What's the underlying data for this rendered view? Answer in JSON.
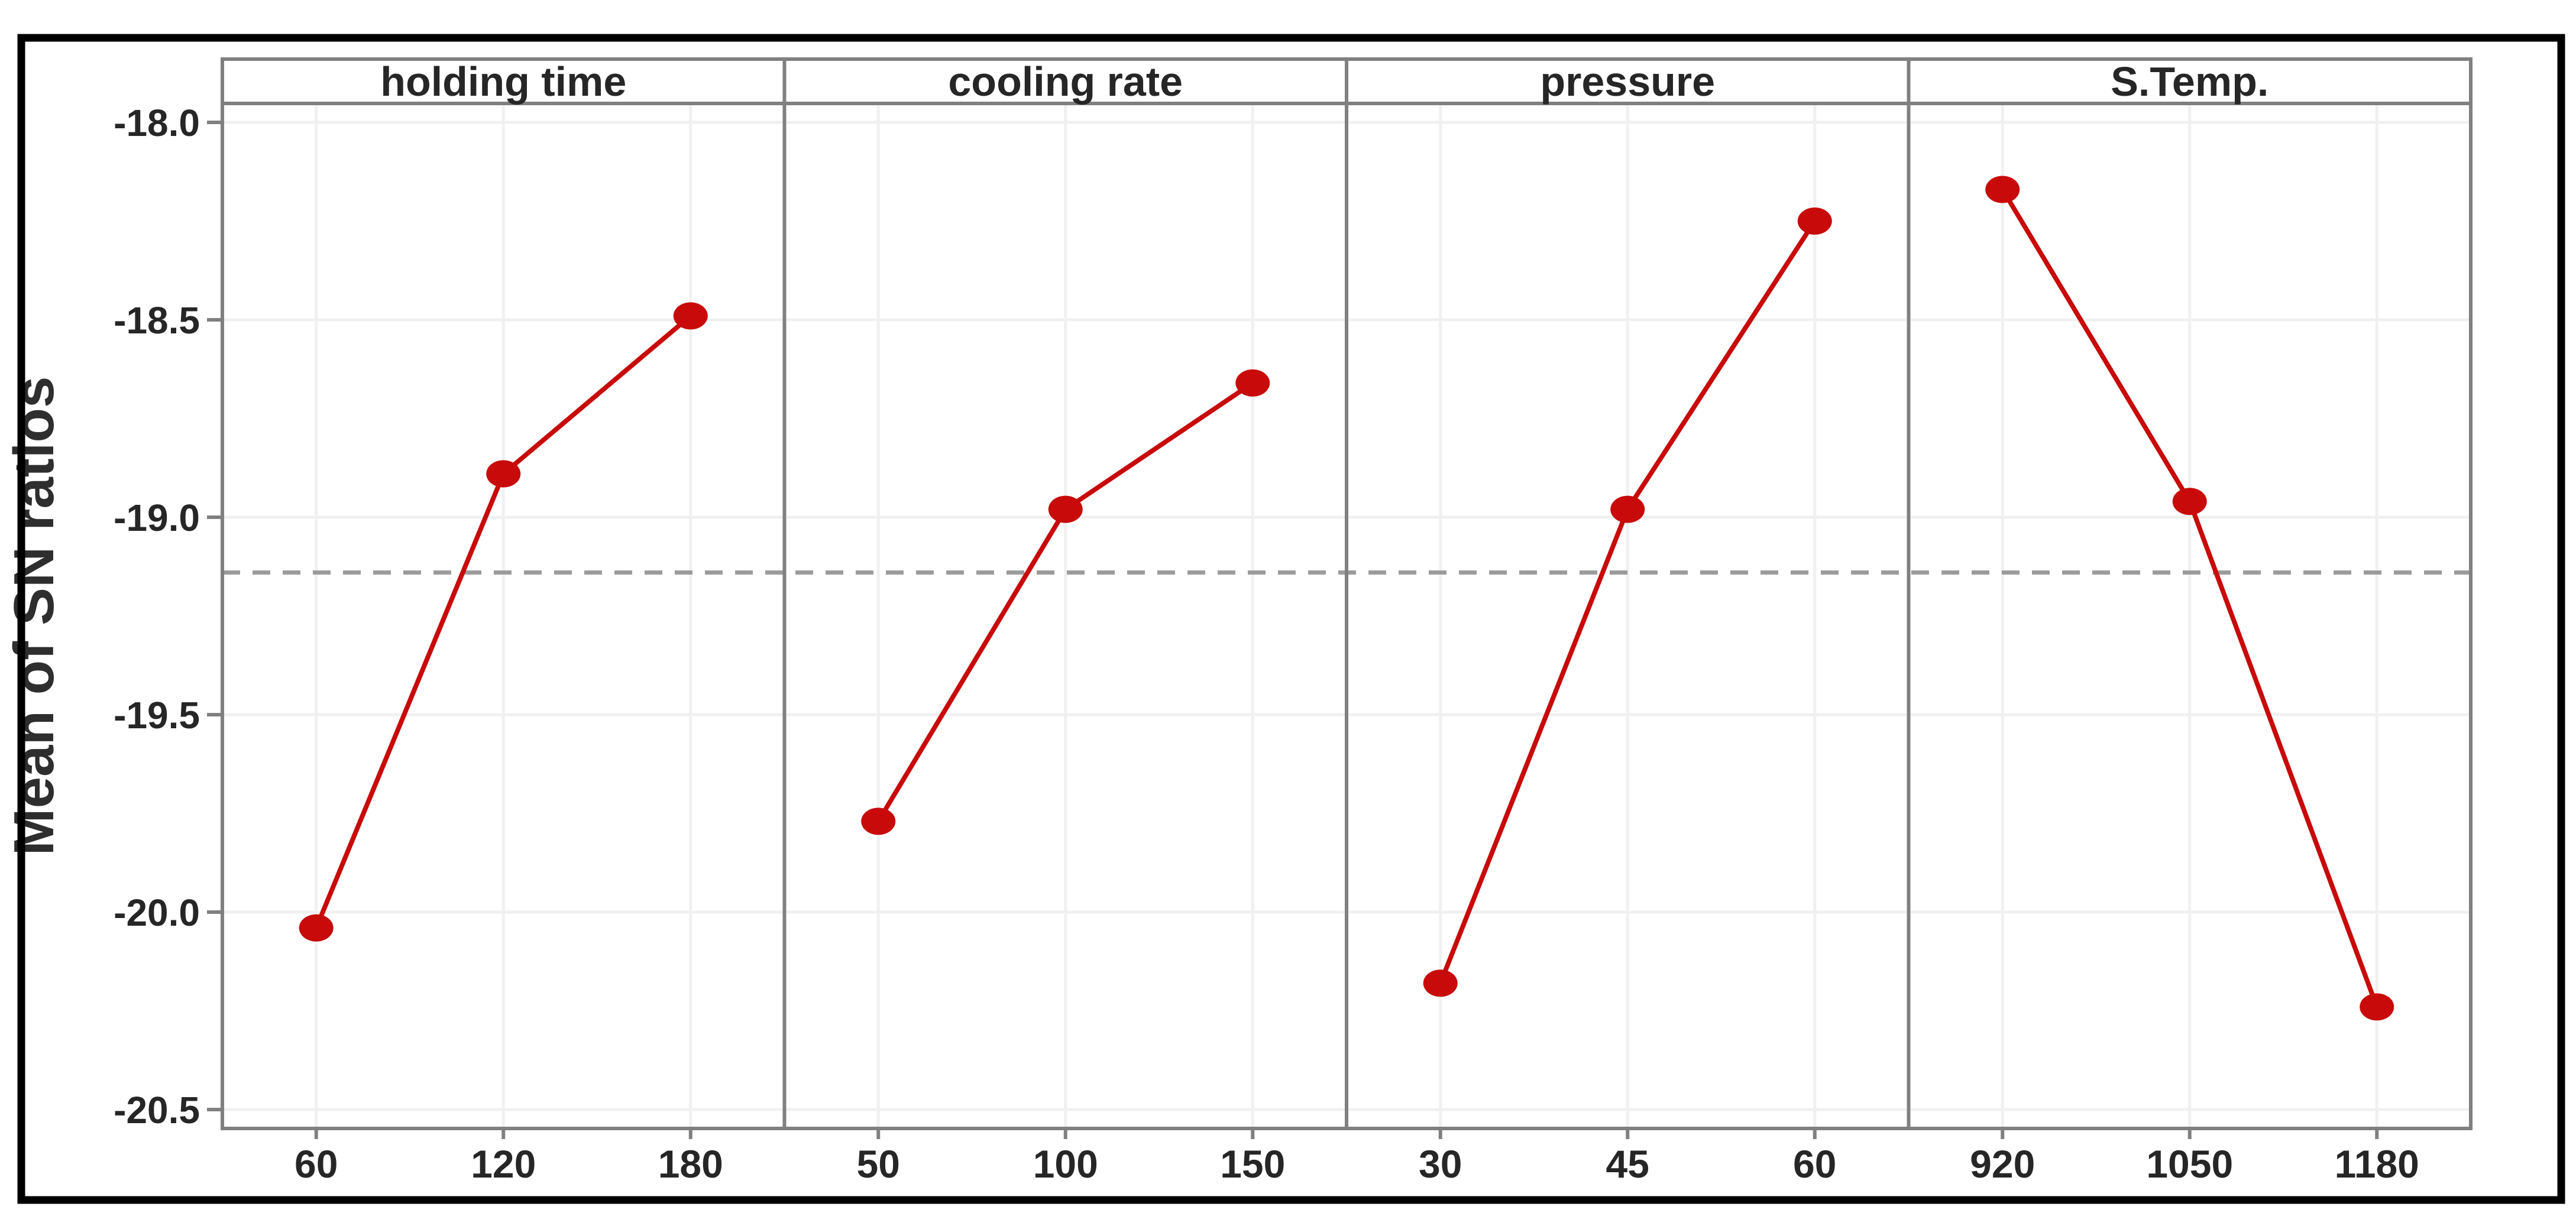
{
  "chart_data": {
    "type": "line",
    "title": "",
    "ylabel": "Mean of SN ratios",
    "ylim": [
      -20.5,
      -18.0
    ],
    "yticks": [
      -18.0,
      -18.5,
      -19.0,
      -19.5,
      -20.0,
      -20.5
    ],
    "ytick_labels": [
      "-18.0",
      "-18.5",
      "-19.0",
      "-19.5",
      "-20.0",
      "-20.5"
    ],
    "reference_line": -19.14,
    "reference_line_style": "dashed",
    "grid": true,
    "legend_position": "none",
    "panels": [
      {
        "title": "holding time",
        "categories": [
          "60",
          "120",
          "180"
        ],
        "values": [
          -20.04,
          -18.89,
          -18.49
        ]
      },
      {
        "title": "cooling rate",
        "categories": [
          "50",
          "100",
          "150"
        ],
        "values": [
          -19.77,
          -18.98,
          -18.66
        ]
      },
      {
        "title": "pressure",
        "categories": [
          "30",
          "45",
          "60"
        ],
        "values": [
          -20.18,
          -18.98,
          -18.25
        ]
      },
      {
        "title": "S.Temp.",
        "categories": [
          "920",
          "1050",
          "1180"
        ],
        "values": [
          -18.17,
          -18.96,
          -20.24
        ]
      }
    ]
  },
  "style": {
    "series_color": "#c80a0a",
    "reference_line_color": "#9b9b9b",
    "panel_border_color": "#808080",
    "gridline_color": "#f0f0f0",
    "text_color": "#262626",
    "outer_border_color": "#000000",
    "background_color": "#ffffff"
  }
}
